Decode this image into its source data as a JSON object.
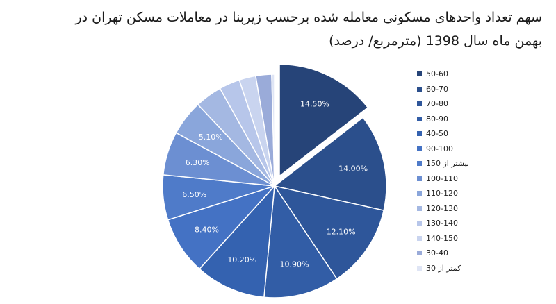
{
  "chart_data": {
    "type": "pie",
    "title_lines": [
      "سهم تعداد واحدهای مسکونی معامله شده برحسب زیربنا در معاملات مسکن تهران در",
      "بهمن ماه سال 1398 (مترمربع/ درصد)"
    ],
    "categories": [
      "50-60",
      "60-70",
      "70-80",
      "80-90",
      "40-50",
      "90-100",
      "بیشتر از 150",
      "100-110",
      "110-120",
      "120-130",
      "130-140",
      "140-150",
      "30-40",
      "کمتر از 30"
    ],
    "values": [
      14.5,
      14.0,
      12.1,
      10.9,
      10.2,
      8.4,
      6.5,
      6.3,
      5.1,
      3.9,
      3.0,
      2.4,
      2.3,
      0.4
    ],
    "data_labels": [
      "14.50%",
      "14.00%",
      "12.10%",
      "10.90%",
      "10.20%",
      "8.40%",
      "6.50%",
      "6.30%",
      "5.10%",
      "",
      "",
      "",
      "",
      ""
    ],
    "colors": [
      "#264478",
      "#2b4f8c",
      "#2e569a",
      "#325da6",
      "#3462b0",
      "#4472c4",
      "#4f7bc9",
      "#6c8fd2",
      "#8aa6db",
      "#a4b8e2",
      "#b7c6ea",
      "#c9d4ef",
      "#9aabd9",
      "#dfe5f5"
    ],
    "exploded_category": "50-60",
    "legend_position": "right"
  }
}
